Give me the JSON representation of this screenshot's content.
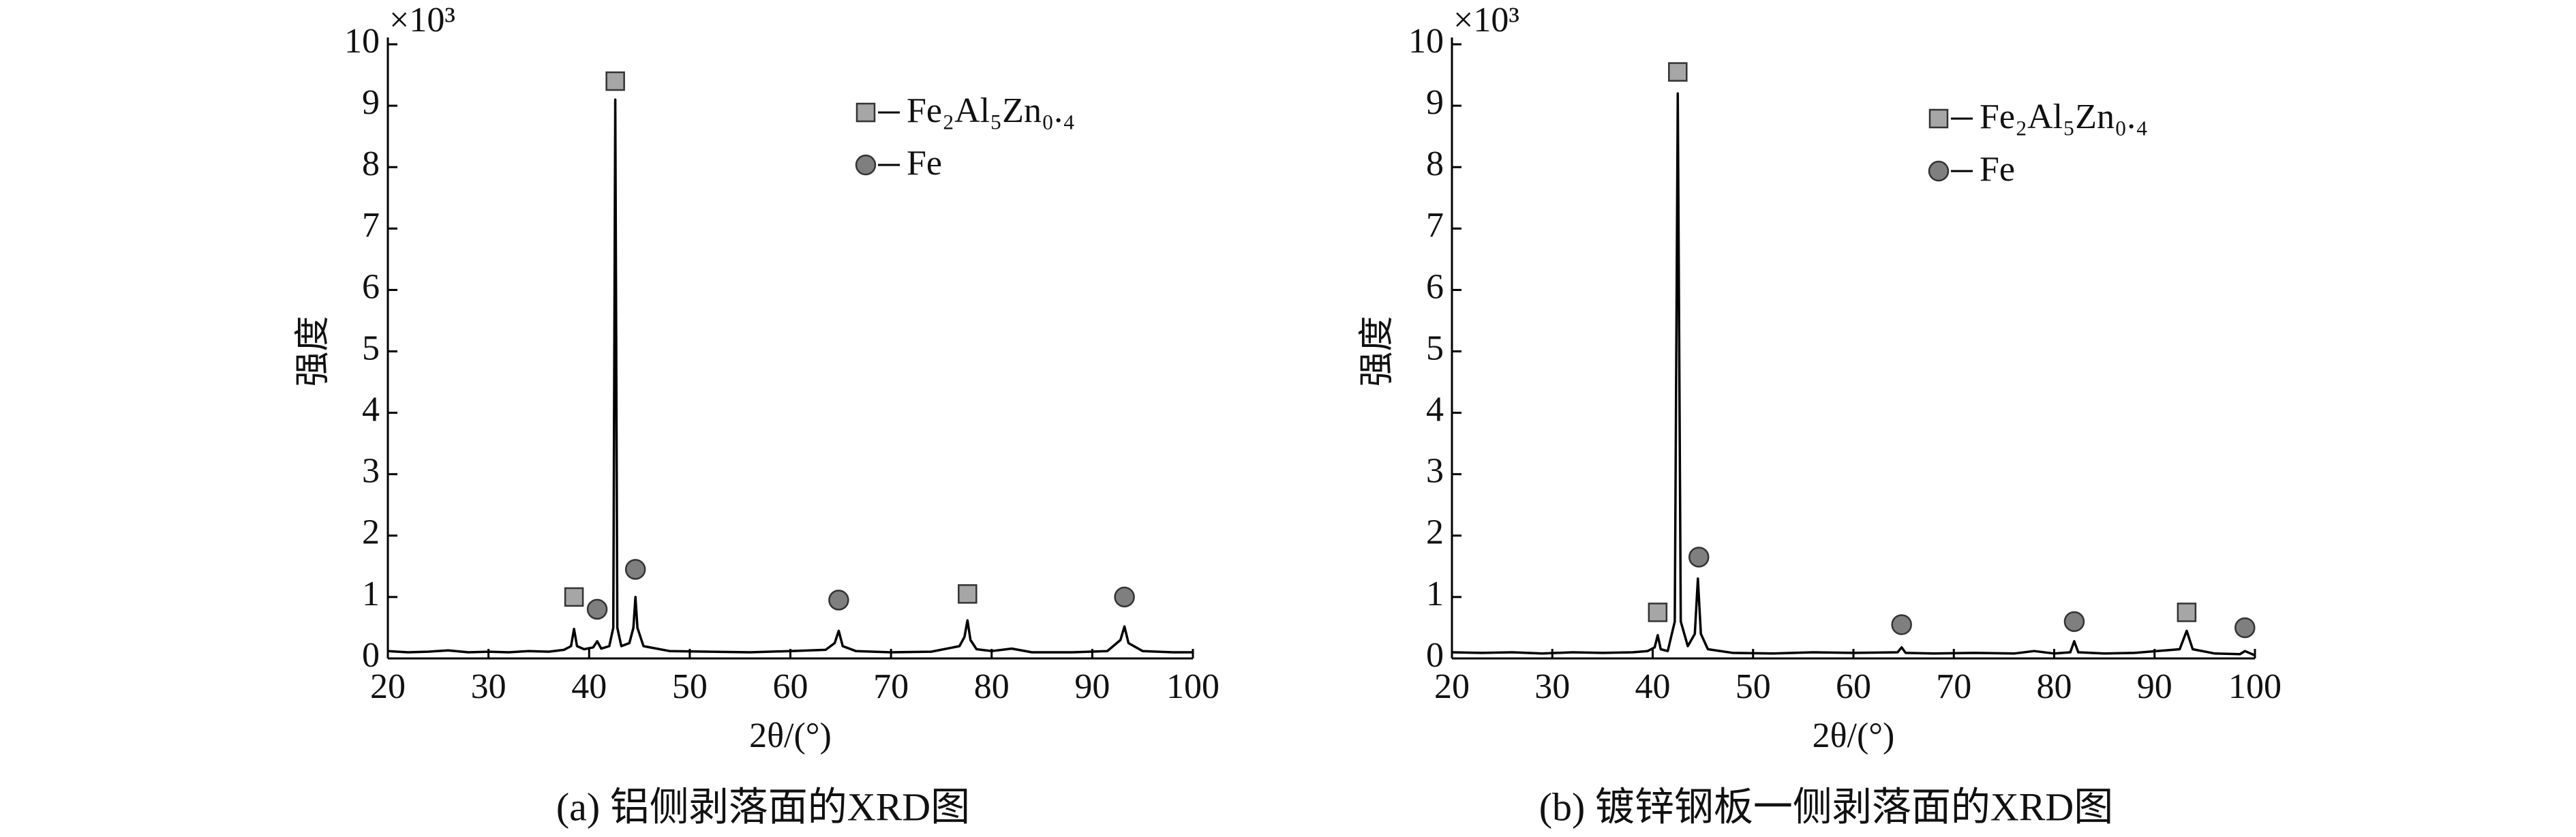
{
  "chart_data": [
    {
      "type": "line",
      "y_unit": "×10³",
      "xlabel": "2θ/(°)",
      "ylabel": "强度",
      "caption": "(a) 铝侧剥落面的XRD图",
      "xlim": [
        20,
        100
      ],
      "xticks": [
        20,
        30,
        40,
        50,
        60,
        70,
        80,
        90,
        100
      ],
      "ylim": [
        0,
        10
      ],
      "yticks": [
        0,
        1,
        2,
        3,
        4,
        5,
        6,
        7,
        8,
        9,
        10
      ],
      "series": [
        {
          "type": "line",
          "color": "#000000",
          "x": [
            20,
            22,
            24,
            26,
            28,
            30,
            32,
            34,
            36,
            37.5,
            38.2,
            38.5,
            38.8,
            39.5,
            40.4,
            40.8,
            41.2,
            42.0,
            42.4,
            42.6,
            42.8,
            43.2,
            44.0,
            44.4,
            44.6,
            44.8,
            45.4,
            48,
            52,
            56,
            60,
            63.5,
            64.4,
            64.8,
            65.2,
            66.5,
            70,
            74,
            76.8,
            77.3,
            77.6,
            77.9,
            78.5,
            80,
            82,
            84,
            88,
            91.5,
            92.8,
            93.2,
            93.6,
            95,
            98,
            100
          ],
          "values": [
            0.12,
            0.1,
            0.11,
            0.13,
            0.1,
            0.11,
            0.1,
            0.12,
            0.11,
            0.14,
            0.2,
            0.48,
            0.2,
            0.15,
            0.18,
            0.28,
            0.16,
            0.2,
            0.5,
            9.1,
            0.5,
            0.2,
            0.25,
            0.5,
            1.0,
            0.5,
            0.2,
            0.12,
            0.11,
            0.1,
            0.12,
            0.14,
            0.25,
            0.45,
            0.2,
            0.12,
            0.1,
            0.11,
            0.2,
            0.35,
            0.62,
            0.3,
            0.15,
            0.12,
            0.16,
            0.1,
            0.1,
            0.12,
            0.3,
            0.52,
            0.25,
            0.12,
            0.1,
            0.1
          ]
        },
        {
          "type": "scatter",
          "name": "Fe₂Al₅Zn₀.₄",
          "marker": "square",
          "color": "#a6a6a6",
          "x": [
            38.5,
            42.6,
            77.6
          ],
          "values": [
            1.0,
            9.4,
            1.05
          ]
        },
        {
          "type": "scatter",
          "name": "Fe",
          "marker": "circle",
          "color": "#7f7f7f",
          "x": [
            40.8,
            44.6,
            64.8,
            93.2
          ],
          "values": [
            0.8,
            1.45,
            0.95,
            1.0
          ]
        }
      ]
    },
    {
      "type": "line",
      "y_unit": "×10³",
      "xlabel": "2θ/(°)",
      "ylabel": "强度",
      "caption": "(b) 镀锌钢板一侧剥落面的XRD图",
      "xlim": [
        20,
        100
      ],
      "xticks": [
        20,
        30,
        40,
        50,
        60,
        70,
        80,
        90,
        100
      ],
      "ylim": [
        0,
        10
      ],
      "yticks": [
        0,
        1,
        2,
        3,
        4,
        5,
        6,
        7,
        8,
        9,
        10
      ],
      "series": [
        {
          "type": "line",
          "color": "#000000",
          "x": [
            20,
            23,
            26,
            29,
            32,
            35,
            38,
            39.5,
            40.2,
            40.5,
            40.8,
            41.5,
            42.2,
            42.5,
            42.8,
            43.5,
            44.2,
            44.5,
            44.8,
            45.5,
            48,
            52,
            56,
            60,
            64.4,
            64.8,
            65.2,
            68,
            72,
            76,
            78,
            80,
            81.6,
            82,
            82.4,
            85,
            88,
            92.5,
            93.2,
            93.8,
            96,
            98.5,
            99,
            100
          ],
          "values": [
            0.1,
            0.09,
            0.1,
            0.08,
            0.1,
            0.09,
            0.1,
            0.12,
            0.18,
            0.38,
            0.15,
            0.12,
            0.6,
            9.2,
            0.6,
            0.2,
            0.4,
            1.3,
            0.4,
            0.15,
            0.09,
            0.08,
            0.1,
            0.09,
            0.1,
            0.18,
            0.09,
            0.08,
            0.09,
            0.08,
            0.12,
            0.08,
            0.1,
            0.28,
            0.1,
            0.08,
            0.09,
            0.15,
            0.45,
            0.15,
            0.08,
            0.07,
            0.12,
            0.05
          ]
        },
        {
          "type": "scatter",
          "name": "Fe₂Al₅Zn₀.₄",
          "marker": "square",
          "color": "#a6a6a6",
          "x": [
            40.5,
            42.5,
            93.2
          ],
          "values": [
            0.75,
            9.55,
            0.75
          ]
        },
        {
          "type": "scatter",
          "name": "Fe",
          "marker": "circle",
          "color": "#7f7f7f",
          "x": [
            44.6,
            64.8,
            82,
            99
          ],
          "values": [
            1.65,
            0.55,
            0.6,
            0.5
          ]
        }
      ]
    }
  ]
}
